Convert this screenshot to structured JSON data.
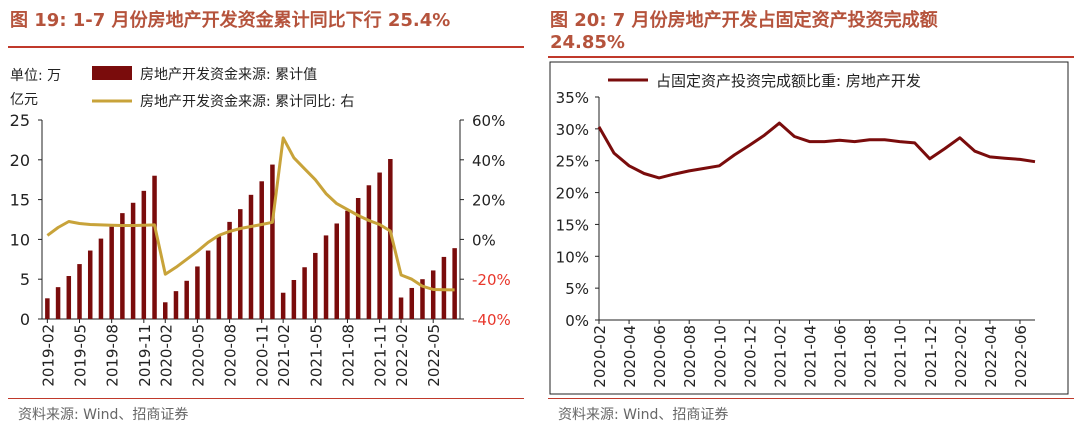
{
  "colors": {
    "bar": "#7a0c0c",
    "line_gold": "#c8a33a",
    "line_dark": "#7a0c0c",
    "neg_tick": "#e8372c",
    "title": "#b5533c",
    "rule": "#c0392b"
  },
  "left": {
    "title": "图 19:  1-7 月份房地产开发资金累计同比下行 25.4%",
    "unit_line1": "单位: 万",
    "unit_line2": "亿元",
    "legend_bar": "房地产开发资金来源: 累计值",
    "legend_line": "房地产开发资金来源: 累计同比: 右",
    "source": "资料来源: Wind、招商证券"
  },
  "right": {
    "title_line1": "图 20:  7 月份房地产开发占固定资产投资完成额",
    "title_line2": "24.85%",
    "legend_line": "占固定资产投资完成额比重: 房地产开发",
    "source": "资料来源: Wind、招商证券"
  },
  "chart_data": [
    {
      "type": "bar",
      "combo_line": true,
      "title": "1-7 月份房地产开发资金累计同比下行 25.4%",
      "categories": [
        "2019-02",
        "2019-03",
        "2019-04",
        "2019-05",
        "2019-06",
        "2019-07",
        "2019-08",
        "2019-09",
        "2019-10",
        "2019-11",
        "2019-12",
        "2020-02",
        "2020-03",
        "2020-04",
        "2020-05",
        "2020-06",
        "2020-07",
        "2020-08",
        "2020-09",
        "2020-10",
        "2020-11",
        "2020-12",
        "2021-02",
        "2021-03",
        "2021-04",
        "2021-05",
        "2021-06",
        "2021-07",
        "2021-08",
        "2021-09",
        "2021-10",
        "2021-11",
        "2021-12",
        "2022-02",
        "2022-03",
        "2022-04",
        "2022-05",
        "2022-06",
        "2022-07"
      ],
      "x_tick_labels": [
        "2019-02",
        "2019-05",
        "2019-08",
        "2019-11",
        "2020-02",
        "2020-05",
        "2020-08",
        "2020-11",
        "2021-02",
        "2021-05",
        "2021-08",
        "2021-11",
        "2022-02",
        "2022-05"
      ],
      "series": [
        {
          "name": "房地产开发资金来源: 累计值",
          "axis": "left",
          "values": [
            2.6,
            4.0,
            5.4,
            6.9,
            8.6,
            10.1,
            11.6,
            13.3,
            14.6,
            16.1,
            18.0,
            2.1,
            3.5,
            4.8,
            6.6,
            8.6,
            10.4,
            12.2,
            13.8,
            15.6,
            17.3,
            19.4,
            3.3,
            4.9,
            6.5,
            8.3,
            10.5,
            12.0,
            13.6,
            15.2,
            16.8,
            18.4,
            20.1,
            2.7,
            3.9,
            5.0,
            6.1,
            7.8,
            8.9
          ]
        },
        {
          "name": "房地产开发资金来源: 累计同比: 右",
          "axis": "right",
          "values": [
            2,
            6,
            9,
            8,
            7.5,
            7.3,
            7.1,
            7.0,
            7.0,
            7.1,
            7.3,
            -17.5,
            -14,
            -10,
            -6,
            -1.5,
            2,
            4,
            5.5,
            6.5,
            7.5,
            8.6,
            51,
            41,
            35.5,
            30,
            23,
            18,
            15,
            12,
            9.5,
            7.5,
            4.2,
            -17.9,
            -20,
            -23.5,
            -25.2,
            -25.3,
            -25.4
          ]
        }
      ],
      "ylim_left": [
        0,
        25
      ],
      "yticks_left": [
        0,
        5,
        10,
        15,
        20,
        25
      ],
      "ylim_right": [
        -40,
        60
      ],
      "yticks_right": [
        "-40%",
        "-20%",
        "0%",
        "20%",
        "40%",
        "60%"
      ]
    },
    {
      "type": "line",
      "title": "7 月份房地产开发占固定资产投资完成额 24.85%",
      "x": [
        "2020-02",
        "2020-03",
        "2020-04",
        "2020-05",
        "2020-06",
        "2020-07",
        "2020-08",
        "2020-09",
        "2020-10",
        "2020-11",
        "2020-12",
        "2021-01",
        "2021-02",
        "2021-03",
        "2021-04",
        "2021-05",
        "2021-06",
        "2021-07",
        "2021-08",
        "2021-09",
        "2021-10",
        "2021-11",
        "2021-12",
        "2022-01",
        "2022-02",
        "2022-03",
        "2022-04",
        "2022-05",
        "2022-06",
        "2022-07"
      ],
      "x_tick_labels": [
        "2020-02",
        "2020-04",
        "2020-06",
        "2020-08",
        "2020-10",
        "2020-12",
        "2021-02",
        "2021-04",
        "2021-06",
        "2021-08",
        "2021-10",
        "2021-12",
        "2022-02",
        "2022-04",
        "2022-06"
      ],
      "series": [
        {
          "name": "占固定资产投资完成额比重: 房地产开发",
          "values": [
            30.3,
            26.2,
            24.2,
            23.0,
            22.3,
            22.9,
            23.4,
            23.8,
            24.2,
            25.9,
            27.4,
            29.0,
            30.9,
            28.8,
            28.0,
            28.0,
            28.2,
            28.0,
            28.3,
            28.3,
            28.0,
            27.8,
            25.3,
            26.9,
            28.6,
            26.5,
            25.6,
            25.4,
            25.2,
            24.85
          ]
        }
      ],
      "ylim": [
        0,
        35
      ],
      "yticks": [
        "0%",
        "5%",
        "10%",
        "15%",
        "20%",
        "25%",
        "30%",
        "35%"
      ]
    }
  ]
}
